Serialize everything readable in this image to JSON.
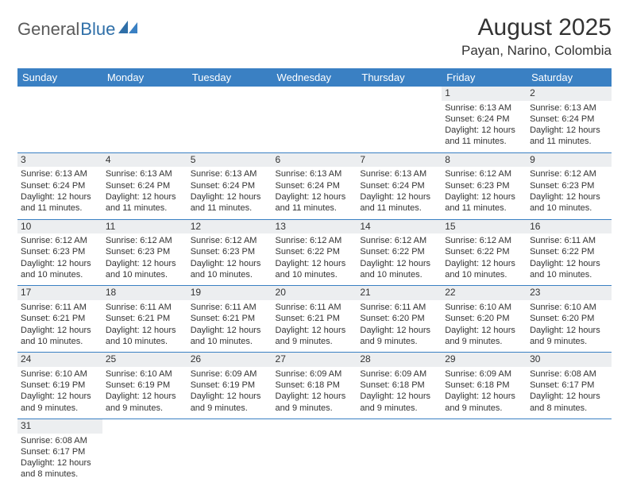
{
  "logo": {
    "text1": "General",
    "text2": "Blue"
  },
  "title": "August 2025",
  "location": "Payan, Narino, Colombia",
  "colors": {
    "header_bg": "#3a80c3",
    "header_text": "#ffffff",
    "daynum_bg": "#eceef0",
    "rule": "#3a80c3",
    "logo_gray": "#5a5a5a",
    "logo_blue": "#2f6fa8"
  },
  "day_headers": [
    "Sunday",
    "Monday",
    "Tuesday",
    "Wednesday",
    "Thursday",
    "Friday",
    "Saturday"
  ],
  "weeks": [
    [
      null,
      null,
      null,
      null,
      null,
      {
        "n": "1",
        "sr": "Sunrise: 6:13 AM",
        "ss": "Sunset: 6:24 PM",
        "d1": "Daylight: 12 hours",
        "d2": "and 11 minutes."
      },
      {
        "n": "2",
        "sr": "Sunrise: 6:13 AM",
        "ss": "Sunset: 6:24 PM",
        "d1": "Daylight: 12 hours",
        "d2": "and 11 minutes."
      }
    ],
    [
      {
        "n": "3",
        "sr": "Sunrise: 6:13 AM",
        "ss": "Sunset: 6:24 PM",
        "d1": "Daylight: 12 hours",
        "d2": "and 11 minutes."
      },
      {
        "n": "4",
        "sr": "Sunrise: 6:13 AM",
        "ss": "Sunset: 6:24 PM",
        "d1": "Daylight: 12 hours",
        "d2": "and 11 minutes."
      },
      {
        "n": "5",
        "sr": "Sunrise: 6:13 AM",
        "ss": "Sunset: 6:24 PM",
        "d1": "Daylight: 12 hours",
        "d2": "and 11 minutes."
      },
      {
        "n": "6",
        "sr": "Sunrise: 6:13 AM",
        "ss": "Sunset: 6:24 PM",
        "d1": "Daylight: 12 hours",
        "d2": "and 11 minutes."
      },
      {
        "n": "7",
        "sr": "Sunrise: 6:13 AM",
        "ss": "Sunset: 6:24 PM",
        "d1": "Daylight: 12 hours",
        "d2": "and 11 minutes."
      },
      {
        "n": "8",
        "sr": "Sunrise: 6:12 AM",
        "ss": "Sunset: 6:23 PM",
        "d1": "Daylight: 12 hours",
        "d2": "and 11 minutes."
      },
      {
        "n": "9",
        "sr": "Sunrise: 6:12 AM",
        "ss": "Sunset: 6:23 PM",
        "d1": "Daylight: 12 hours",
        "d2": "and 10 minutes."
      }
    ],
    [
      {
        "n": "10",
        "sr": "Sunrise: 6:12 AM",
        "ss": "Sunset: 6:23 PM",
        "d1": "Daylight: 12 hours",
        "d2": "and 10 minutes."
      },
      {
        "n": "11",
        "sr": "Sunrise: 6:12 AM",
        "ss": "Sunset: 6:23 PM",
        "d1": "Daylight: 12 hours",
        "d2": "and 10 minutes."
      },
      {
        "n": "12",
        "sr": "Sunrise: 6:12 AM",
        "ss": "Sunset: 6:23 PM",
        "d1": "Daylight: 12 hours",
        "d2": "and 10 minutes."
      },
      {
        "n": "13",
        "sr": "Sunrise: 6:12 AM",
        "ss": "Sunset: 6:22 PM",
        "d1": "Daylight: 12 hours",
        "d2": "and 10 minutes."
      },
      {
        "n": "14",
        "sr": "Sunrise: 6:12 AM",
        "ss": "Sunset: 6:22 PM",
        "d1": "Daylight: 12 hours",
        "d2": "and 10 minutes."
      },
      {
        "n": "15",
        "sr": "Sunrise: 6:12 AM",
        "ss": "Sunset: 6:22 PM",
        "d1": "Daylight: 12 hours",
        "d2": "and 10 minutes."
      },
      {
        "n": "16",
        "sr": "Sunrise: 6:11 AM",
        "ss": "Sunset: 6:22 PM",
        "d1": "Daylight: 12 hours",
        "d2": "and 10 minutes."
      }
    ],
    [
      {
        "n": "17",
        "sr": "Sunrise: 6:11 AM",
        "ss": "Sunset: 6:21 PM",
        "d1": "Daylight: 12 hours",
        "d2": "and 10 minutes."
      },
      {
        "n": "18",
        "sr": "Sunrise: 6:11 AM",
        "ss": "Sunset: 6:21 PM",
        "d1": "Daylight: 12 hours",
        "d2": "and 10 minutes."
      },
      {
        "n": "19",
        "sr": "Sunrise: 6:11 AM",
        "ss": "Sunset: 6:21 PM",
        "d1": "Daylight: 12 hours",
        "d2": "and 10 minutes."
      },
      {
        "n": "20",
        "sr": "Sunrise: 6:11 AM",
        "ss": "Sunset: 6:21 PM",
        "d1": "Daylight: 12 hours",
        "d2": "and 9 minutes."
      },
      {
        "n": "21",
        "sr": "Sunrise: 6:11 AM",
        "ss": "Sunset: 6:20 PM",
        "d1": "Daylight: 12 hours",
        "d2": "and 9 minutes."
      },
      {
        "n": "22",
        "sr": "Sunrise: 6:10 AM",
        "ss": "Sunset: 6:20 PM",
        "d1": "Daylight: 12 hours",
        "d2": "and 9 minutes."
      },
      {
        "n": "23",
        "sr": "Sunrise: 6:10 AM",
        "ss": "Sunset: 6:20 PM",
        "d1": "Daylight: 12 hours",
        "d2": "and 9 minutes."
      }
    ],
    [
      {
        "n": "24",
        "sr": "Sunrise: 6:10 AM",
        "ss": "Sunset: 6:19 PM",
        "d1": "Daylight: 12 hours",
        "d2": "and 9 minutes."
      },
      {
        "n": "25",
        "sr": "Sunrise: 6:10 AM",
        "ss": "Sunset: 6:19 PM",
        "d1": "Daylight: 12 hours",
        "d2": "and 9 minutes."
      },
      {
        "n": "26",
        "sr": "Sunrise: 6:09 AM",
        "ss": "Sunset: 6:19 PM",
        "d1": "Daylight: 12 hours",
        "d2": "and 9 minutes."
      },
      {
        "n": "27",
        "sr": "Sunrise: 6:09 AM",
        "ss": "Sunset: 6:18 PM",
        "d1": "Daylight: 12 hours",
        "d2": "and 9 minutes."
      },
      {
        "n": "28",
        "sr": "Sunrise: 6:09 AM",
        "ss": "Sunset: 6:18 PM",
        "d1": "Daylight: 12 hours",
        "d2": "and 9 minutes."
      },
      {
        "n": "29",
        "sr": "Sunrise: 6:09 AM",
        "ss": "Sunset: 6:18 PM",
        "d1": "Daylight: 12 hours",
        "d2": "and 9 minutes."
      },
      {
        "n": "30",
        "sr": "Sunrise: 6:08 AM",
        "ss": "Sunset: 6:17 PM",
        "d1": "Daylight: 12 hours",
        "d2": "and 8 minutes."
      }
    ],
    [
      {
        "n": "31",
        "sr": "Sunrise: 6:08 AM",
        "ss": "Sunset: 6:17 PM",
        "d1": "Daylight: 12 hours",
        "d2": "and 8 minutes."
      },
      null,
      null,
      null,
      null,
      null,
      null
    ]
  ]
}
